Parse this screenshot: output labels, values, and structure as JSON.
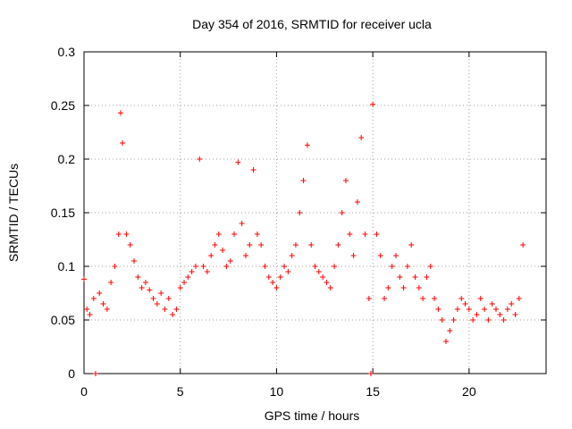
{
  "chart_data": {
    "type": "scatter",
    "title": "Day 354 of 2016, SRMTID for receiver ucla",
    "xlabel": "GPS time / hours",
    "ylabel": "SRMTID / TECUs",
    "xlim": [
      0,
      24
    ],
    "ylim": [
      0,
      0.3
    ],
    "xticks": [
      0,
      5,
      10,
      15,
      20
    ],
    "xtick_labels": [
      "0",
      "5",
      "10",
      "15",
      "20"
    ],
    "yticks": [
      0,
      0.05,
      0.1,
      0.15,
      0.2,
      0.25,
      0.3
    ],
    "ytick_labels": [
      "0",
      "0.05",
      "0.1",
      "0.15",
      "0.2",
      "0.25",
      "0.3"
    ],
    "grid": true,
    "legend": "none",
    "marker": "plus",
    "series": [
      {
        "name": "SRMTID",
        "color": "#ff0000",
        "x": [
          0.0,
          0.15,
          0.3,
          0.5,
          0.6,
          0.8,
          1.0,
          1.2,
          1.4,
          1.6,
          1.8,
          1.9,
          2.0,
          2.2,
          2.4,
          2.6,
          2.8,
          3.0,
          3.2,
          3.4,
          3.6,
          3.8,
          4.0,
          4.2,
          4.4,
          4.6,
          4.8,
          5.0,
          5.2,
          5.4,
          5.6,
          5.8,
          6.0,
          6.2,
          6.4,
          6.6,
          6.8,
          7.0,
          7.2,
          7.4,
          7.6,
          7.8,
          8.0,
          8.2,
          8.4,
          8.6,
          8.8,
          9.0,
          9.2,
          9.4,
          9.6,
          9.8,
          10.0,
          10.2,
          10.4,
          10.6,
          10.8,
          11.0,
          11.2,
          11.4,
          11.6,
          11.8,
          12.0,
          12.2,
          12.4,
          12.6,
          12.8,
          13.0,
          13.2,
          13.4,
          13.6,
          13.8,
          14.0,
          14.2,
          14.4,
          14.6,
          14.8,
          14.9,
          15.0,
          15.2,
          15.4,
          15.6,
          15.8,
          16.0,
          16.2,
          16.4,
          16.6,
          16.8,
          17.0,
          17.2,
          17.4,
          17.6,
          17.8,
          18.0,
          18.2,
          18.4,
          18.6,
          18.8,
          19.0,
          19.2,
          19.4,
          19.6,
          19.8,
          20.0,
          20.2,
          20.4,
          20.6,
          20.8,
          21.0,
          21.2,
          21.4,
          21.6,
          21.8,
          22.0,
          22.2,
          22.4,
          22.6,
          22.8
        ],
        "y": [
          0.088,
          0.06,
          0.055,
          0.07,
          0.0,
          0.075,
          0.065,
          0.06,
          0.085,
          0.1,
          0.13,
          0.243,
          0.215,
          0.13,
          0.12,
          0.105,
          0.09,
          0.08,
          0.085,
          0.078,
          0.07,
          0.065,
          0.075,
          0.06,
          0.07,
          0.055,
          0.06,
          0.08,
          0.085,
          0.09,
          0.095,
          0.1,
          0.2,
          0.1,
          0.095,
          0.11,
          0.12,
          0.13,
          0.115,
          0.1,
          0.105,
          0.13,
          0.197,
          0.14,
          0.11,
          0.12,
          0.19,
          0.13,
          0.12,
          0.1,
          0.09,
          0.085,
          0.08,
          0.09,
          0.1,
          0.095,
          0.11,
          0.12,
          0.15,
          0.18,
          0.213,
          0.12,
          0.1,
          0.095,
          0.09,
          0.085,
          0.08,
          0.1,
          0.12,
          0.15,
          0.18,
          0.13,
          0.11,
          0.16,
          0.22,
          0.13,
          0.07,
          0.0,
          0.251,
          0.13,
          0.11,
          0.07,
          0.08,
          0.1,
          0.11,
          0.09,
          0.08,
          0.1,
          0.12,
          0.09,
          0.08,
          0.07,
          0.09,
          0.1,
          0.07,
          0.06,
          0.05,
          0.03,
          0.04,
          0.05,
          0.06,
          0.07,
          0.065,
          0.06,
          0.05,
          0.055,
          0.07,
          0.06,
          0.05,
          0.065,
          0.06,
          0.055,
          0.05,
          0.06,
          0.065,
          0.055,
          0.07,
          0.12
        ]
      }
    ]
  }
}
